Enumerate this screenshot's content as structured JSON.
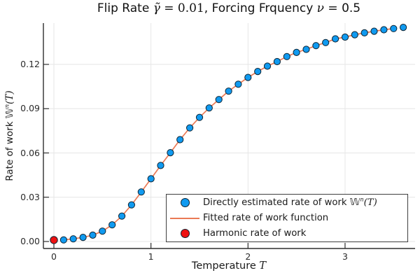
{
  "title": {
    "pre": "Flip Rate ",
    "math_gamma": "γ̃",
    "math_eq": " = 0.01",
    "mid": ", Forcing Frquency ",
    "math_nu": "ν",
    "post": " = 0.5"
  },
  "x_axis": {
    "label_pre": "Temperature ",
    "label_math": "T",
    "tick_labels": [
      "0",
      "1",
      "2",
      "3"
    ]
  },
  "y_axis": {
    "label_pre": "Rate of work ",
    "label_w": "𝕎",
    "label_sup": "n",
    "label_paren": "(T)",
    "tick_labels": [
      "0.00",
      "0.03",
      "0.06",
      "0.09",
      "0.12"
    ]
  },
  "legend": {
    "items": [
      {
        "marker": "circle-blue",
        "label_pre": "Directly estimated rate of work ",
        "label_w": "𝕎",
        "label_sup": "n",
        "label_paren": "(T)"
      },
      {
        "marker": "line-orange",
        "label": "Fitted rate of work function"
      },
      {
        "marker": "circle-red",
        "label": "Harmonic rate of work"
      }
    ]
  },
  "colors": {
    "scatter_blue": "#109af0",
    "marker_stroke": "#0e2433",
    "fit_orange": "#ea7a55",
    "harmonic_red": "#ee1111",
    "grid": "#e6e6e6",
    "spine": "#2f2f2f",
    "text": "#151515"
  },
  "chart_data": {
    "type": "scatter",
    "title": "Flip Rate γ̃ = 0.01, Forcing Frquency ν = 0.5",
    "xlabel": "Temperature T",
    "ylabel": "Rate of work 𝕎ⁿ(T)",
    "xlim": [
      -0.11,
      3.72
    ],
    "ylim": [
      -0.0047,
      0.148
    ],
    "x_ticks": [
      0,
      1,
      2,
      3
    ],
    "y_ticks": [
      0,
      0.03,
      0.06,
      0.09,
      0.12
    ],
    "grid": true,
    "legend_position": "lower right",
    "series": [
      {
        "name": "Directly estimated rate of work 𝕎ⁿ(T)",
        "type": "scatter",
        "color": "#109af0",
        "x": [
          0.1,
          0.2,
          0.3,
          0.4,
          0.5,
          0.6,
          0.7,
          0.8,
          0.9,
          1.0,
          1.1,
          1.2,
          1.3,
          1.4,
          1.5,
          1.6,
          1.7,
          1.8,
          1.9,
          2.0,
          2.1,
          2.2,
          2.3,
          2.4,
          2.5,
          2.6,
          2.7,
          2.8,
          2.9,
          3.0,
          3.1,
          3.2,
          3.3,
          3.4,
          3.5,
          3.6
        ],
        "y": [
          0.0011,
          0.0018,
          0.0028,
          0.0043,
          0.007,
          0.0113,
          0.0172,
          0.0248,
          0.0336,
          0.0425,
          0.0515,
          0.0602,
          0.069,
          0.077,
          0.0841,
          0.0905,
          0.0962,
          0.1019,
          0.1066,
          0.1112,
          0.1152,
          0.1188,
          0.1219,
          0.1253,
          0.1281,
          0.1302,
          0.1327,
          0.1348,
          0.1373,
          0.1385,
          0.1401,
          0.1414,
          0.1425,
          0.1435,
          0.1443,
          0.1451
        ]
      },
      {
        "name": "Fitted rate of work function",
        "type": "line",
        "color": "#ea7a55",
        "x_start": 0.1,
        "x_end": 3.5,
        "note": "smooth fit passing through the scatter points from T=0.1 to T=3.5"
      },
      {
        "name": "Harmonic rate of work",
        "type": "scatter",
        "color": "#ee1111",
        "x": [
          0.0
        ],
        "y": [
          0.001
        ]
      }
    ]
  }
}
